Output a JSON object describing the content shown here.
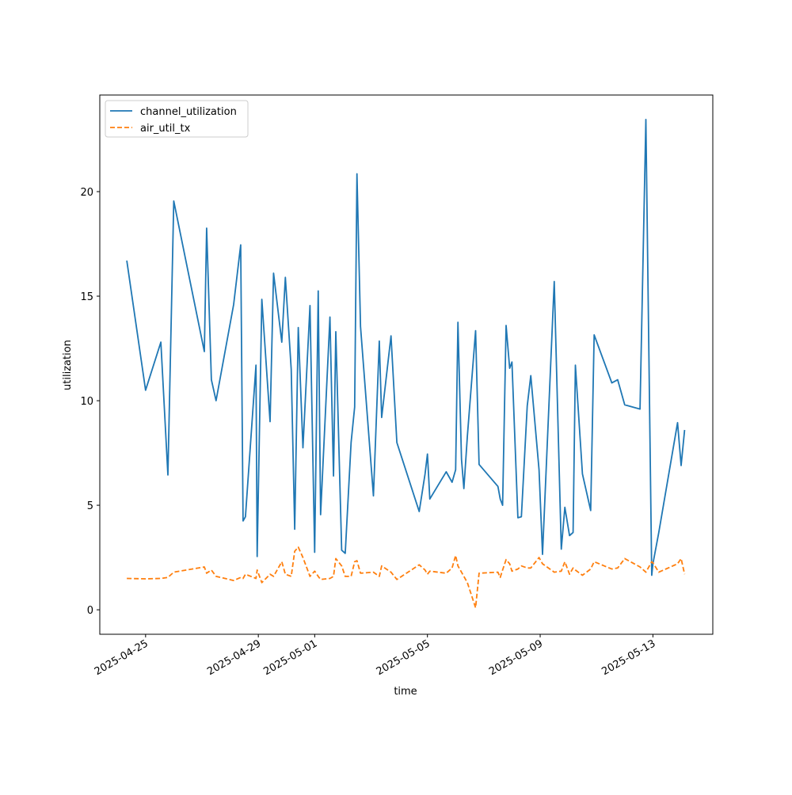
{
  "chart_data": {
    "type": "line",
    "xlabel": "time",
    "ylabel": "utilization",
    "x": [
      "2025-04-24 08:00",
      "2025-04-25 00:00",
      "2025-04-25 13:00",
      "2025-04-25 19:00",
      "2025-04-26 00:00",
      "2025-04-27 02:00",
      "2025-04-27 04:00",
      "2025-04-27 08:00",
      "2025-04-27 12:00",
      "2025-04-28 03:00",
      "2025-04-28 09:00",
      "2025-04-28 11:00",
      "2025-04-28 13:00",
      "2025-04-28 22:00",
      "2025-04-28 23:00",
      "2025-04-29 03:00",
      "2025-04-29 10:00",
      "2025-04-29 13:00",
      "2025-04-29 20:00",
      "2025-04-29 23:00",
      "2025-04-30 04:00",
      "2025-04-30 07:00",
      "2025-04-30 10:00",
      "2025-04-30 14:00",
      "2025-04-30 20:00",
      "2025-05-01 00:00",
      "2025-05-01 03:00",
      "2025-05-01 05:00",
      "2025-05-01 13:00",
      "2025-05-01 16:00",
      "2025-05-01 18:00",
      "2025-05-01 23:00",
      "2025-05-02 02:00",
      "2025-05-02 07:00",
      "2025-05-02 10:00",
      "2025-05-02 12:00",
      "2025-05-02 15:00",
      "2025-05-03 02:00",
      "2025-05-03 07:00",
      "2025-05-03 09:00",
      "2025-05-03 17:00",
      "2025-05-03 22:00",
      "2025-05-04 17:00",
      "2025-05-04 22:00",
      "2025-05-05 00:00",
      "2025-05-05 02:00",
      "2025-05-05 16:00",
      "2025-05-05 21:00",
      "2025-05-06 00:00",
      "2025-05-06 02:00",
      "2025-05-06 05:00",
      "2025-05-06 07:00",
      "2025-05-06 10:00",
      "2025-05-06 17:00",
      "2025-05-06 20:00",
      "2025-05-07 12:00",
      "2025-05-07 14:00",
      "2025-05-07 16:00",
      "2025-05-07 19:00",
      "2025-05-07 22:00",
      "2025-05-08 00:00",
      "2025-05-08 05:00",
      "2025-05-08 08:00",
      "2025-05-08 13:00",
      "2025-05-08 16:00",
      "2025-05-08 23:00",
      "2025-05-09 02:00",
      "2025-05-09 12:00",
      "2025-05-09 18:00",
      "2025-05-09 21:00",
      "2025-05-10 01:00",
      "2025-05-10 04:00",
      "2025-05-10 06:00",
      "2025-05-10 12:00",
      "2025-05-10 19:00",
      "2025-05-10 22:00",
      "2025-05-11 13:00",
      "2025-05-11 18:00",
      "2025-05-12 00:00",
      "2025-05-12 13:00",
      "2025-05-12 18:00",
      "2025-05-12 23:00",
      "2025-05-13 00:00",
      "2025-05-13 05:00",
      "2025-05-13 21:00",
      "2025-05-14 00:00",
      "2025-05-14 03:00"
    ],
    "series": [
      {
        "name": "channel_utilization",
        "color": "#1f77b4",
        "dash": false,
        "values": [
          16.7,
          10.5,
          12.8,
          6.45,
          19.55,
          12.35,
          18.25,
          11.0,
          10.0,
          14.6,
          17.45,
          4.25,
          4.45,
          11.7,
          2.55,
          14.85,
          9.0,
          16.1,
          12.8,
          15.9,
          11.5,
          3.85,
          13.5,
          7.75,
          14.55,
          2.75,
          15.25,
          4.55,
          14.0,
          6.4,
          13.3,
          2.85,
          2.7,
          8.0,
          9.7,
          20.85,
          13.55,
          5.45,
          12.85,
          9.2,
          13.1,
          8.0,
          4.7,
          6.5,
          7.45,
          5.3,
          6.6,
          6.1,
          6.7,
          13.75,
          7.2,
          5.8,
          8.3,
          13.35,
          6.95,
          5.9,
          5.3,
          5.0,
          13.6,
          11.55,
          11.85,
          4.4,
          4.45,
          9.75,
          11.2,
          6.7,
          2.65,
          15.7,
          2.9,
          4.9,
          3.55,
          3.7,
          11.7,
          6.5,
          4.75,
          13.15,
          10.85,
          11.0,
          9.8,
          9.6,
          23.45,
          1.65,
          2.2,
          3.7,
          8.95,
          6.9,
          8.6
        ]
      },
      {
        "name": "air_util_tx",
        "color": "#ff7f0e",
        "dash": true,
        "values": [
          1.5,
          1.48,
          1.5,
          1.55,
          1.8,
          2.05,
          1.75,
          1.9,
          1.6,
          1.4,
          1.55,
          1.5,
          1.7,
          1.5,
          1.9,
          1.3,
          1.7,
          1.6,
          2.3,
          1.7,
          1.6,
          2.8,
          3.0,
          2.5,
          1.6,
          1.85,
          1.6,
          1.45,
          1.5,
          1.6,
          2.45,
          2.1,
          1.6,
          1.6,
          2.3,
          2.35,
          1.75,
          1.8,
          1.6,
          2.1,
          1.8,
          1.45,
          2.15,
          1.9,
          1.7,
          1.85,
          1.75,
          2.0,
          2.6,
          2.1,
          1.8,
          1.6,
          1.3,
          0.1,
          1.75,
          1.8,
          1.55,
          1.9,
          2.4,
          2.2,
          1.85,
          1.95,
          2.1,
          2.0,
          2.0,
          2.5,
          2.2,
          1.8,
          1.85,
          2.3,
          1.7,
          2.0,
          1.9,
          1.65,
          1.95,
          2.3,
          1.95,
          2.0,
          2.45,
          2.05,
          1.8,
          2.3,
          2.25,
          1.8,
          2.2,
          2.45,
          1.7
        ]
      }
    ],
    "xlim": [
      "2025-04-23 09:00",
      "2025-05-15 03:00"
    ],
    "xticks": [
      "2025-04-25",
      "2025-04-29",
      "2025-05-01",
      "2025-05-05",
      "2025-05-09",
      "2025-05-13"
    ],
    "ylim": [
      -1.17,
      24.62
    ],
    "yticks": [
      0,
      5,
      10,
      15,
      20
    ],
    "grid": false,
    "legend": "upper left"
  }
}
